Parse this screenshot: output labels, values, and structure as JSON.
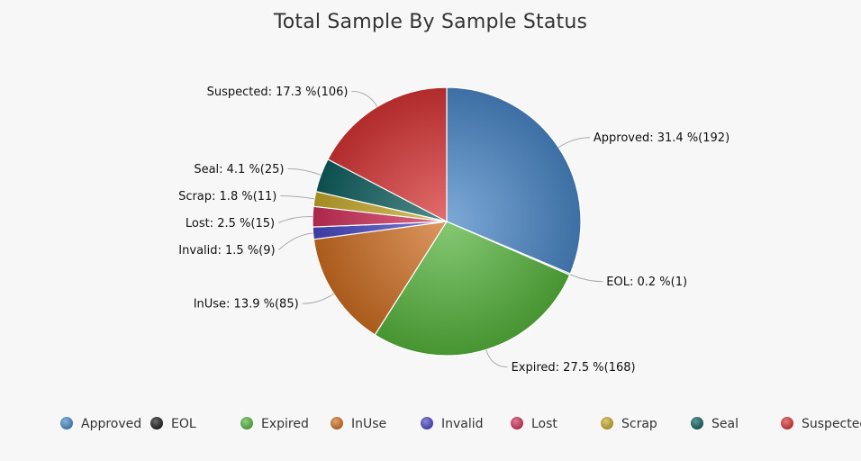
{
  "chart_data": {
    "type": "pie",
    "title": "Total Sample By Sample Status",
    "series": [
      {
        "name": "Approved",
        "percent": 31.4,
        "count": 192,
        "label": "Approved: 31.4 %(192)",
        "color": "#4a87c8"
      },
      {
        "name": "EOL",
        "percent": 0.2,
        "count": 1,
        "label": "EOL: 0.2 %(1)",
        "color": "#1c1c1c"
      },
      {
        "name": "Expired",
        "percent": 27.5,
        "count": 168,
        "label": "Expired: 27.5 %(168)",
        "color": "#56b43d"
      },
      {
        "name": "InUse",
        "percent": 13.9,
        "count": 85,
        "label": "InUse: 13.9 %(85)",
        "color": "#cf6f22"
      },
      {
        "name": "Invalid",
        "percent": 1.5,
        "count": 9,
        "label": "Invalid: 1.5 %(9)",
        "color": "#4747c4"
      },
      {
        "name": "Lost",
        "percent": 2.5,
        "count": 15,
        "label": "Lost: 2.5 %(15)",
        "color": "#d0305a"
      },
      {
        "name": "Scrap",
        "percent": 1.8,
        "count": 11,
        "label": "Scrap: 1.8 %(11)",
        "color": "#c7a92a"
      },
      {
        "name": "Seal",
        "percent": 4.1,
        "count": 25,
        "label": "Seal: 4.1 %(25)",
        "color": "#0f5f5f"
      },
      {
        "name": "Suspected",
        "percent": 17.3,
        "count": 106,
        "label": "Suspected: 17.3 %(106)",
        "color": "#d83434"
      }
    ],
    "legend_position": "bottom"
  }
}
